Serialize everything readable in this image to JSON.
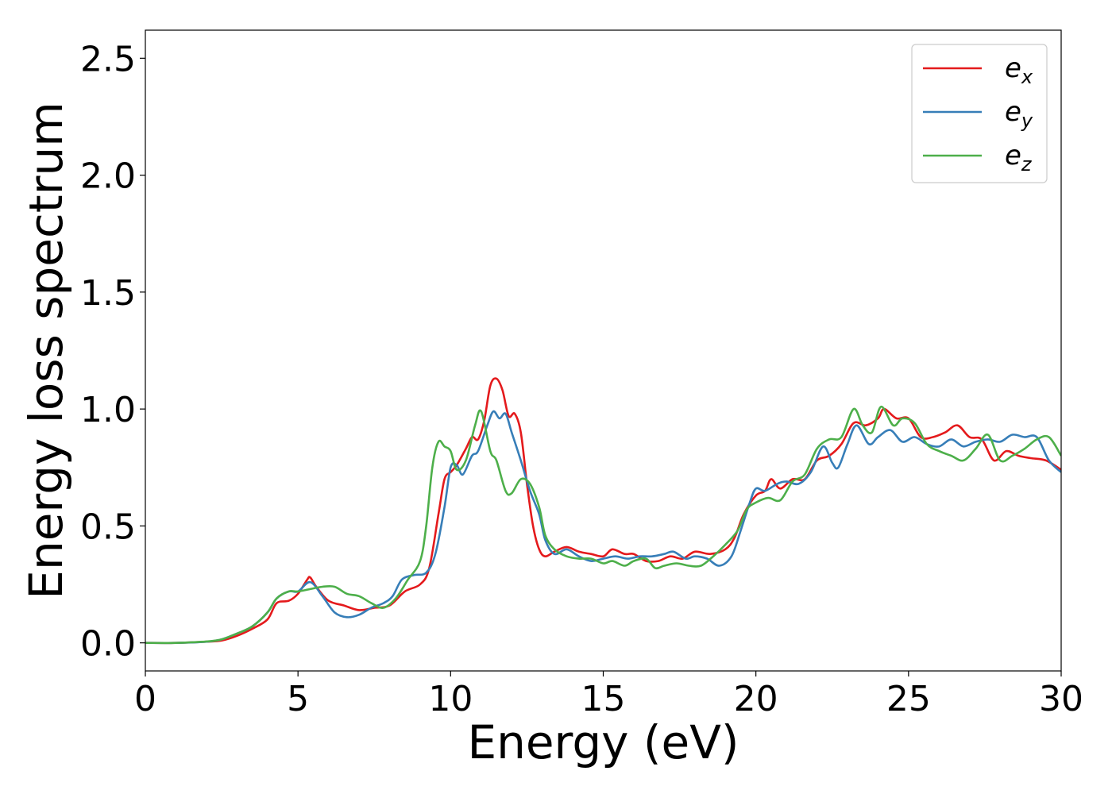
{
  "chart_data": {
    "type": "line",
    "xlabel": "Energy (eV)",
    "ylabel": "Energy loss spectrum",
    "xlim": [
      0,
      30
    ],
    "ylim": [
      -0.12,
      2.62
    ],
    "x_ticks": [
      "0",
      "5",
      "10",
      "15",
      "20",
      "25",
      "30"
    ],
    "y_ticks": [
      "0.0",
      "0.5",
      "1.0",
      "1.5",
      "2.0",
      "2.5"
    ],
    "grid": false,
    "legend_position": "top-right",
    "series": [
      {
        "name": "e_x",
        "label_base": "e",
        "label_sub": "x",
        "color": "#e41a1c",
        "points": [
          [
            0,
            0.0
          ],
          [
            1,
            0.0
          ],
          [
            2,
            0.005
          ],
          [
            2.5,
            0.01
          ],
          [
            3,
            0.03
          ],
          [
            3.5,
            0.06
          ],
          [
            4,
            0.1
          ],
          [
            4.3,
            0.17
          ],
          [
            4.7,
            0.18
          ],
          [
            5.0,
            0.21
          ],
          [
            5.3,
            0.27
          ],
          [
            5.4,
            0.28
          ],
          [
            5.6,
            0.24
          ],
          [
            6.0,
            0.18
          ],
          [
            6.5,
            0.16
          ],
          [
            7.0,
            0.14
          ],
          [
            7.5,
            0.15
          ],
          [
            8.0,
            0.16
          ],
          [
            8.5,
            0.22
          ],
          [
            9.0,
            0.25
          ],
          [
            9.3,
            0.32
          ],
          [
            9.6,
            0.55
          ],
          [
            9.8,
            0.7
          ],
          [
            10.0,
            0.73
          ],
          [
            10.2,
            0.76
          ],
          [
            10.5,
            0.83
          ],
          [
            10.7,
            0.88
          ],
          [
            10.9,
            0.87
          ],
          [
            11.1,
            0.95
          ],
          [
            11.3,
            1.1
          ],
          [
            11.5,
            1.13
          ],
          [
            11.7,
            1.08
          ],
          [
            11.9,
            0.97
          ],
          [
            12.1,
            0.98
          ],
          [
            12.3,
            0.9
          ],
          [
            12.5,
            0.68
          ],
          [
            12.7,
            0.5
          ],
          [
            12.9,
            0.4
          ],
          [
            13.1,
            0.37
          ],
          [
            13.4,
            0.39
          ],
          [
            13.8,
            0.41
          ],
          [
            14.2,
            0.39
          ],
          [
            14.6,
            0.38
          ],
          [
            15.0,
            0.37
          ],
          [
            15.3,
            0.4
          ],
          [
            15.7,
            0.38
          ],
          [
            16.0,
            0.38
          ],
          [
            16.4,
            0.35
          ],
          [
            16.8,
            0.35
          ],
          [
            17.2,
            0.37
          ],
          [
            17.6,
            0.36
          ],
          [
            18.0,
            0.39
          ],
          [
            18.5,
            0.38
          ],
          [
            19.0,
            0.4
          ],
          [
            19.3,
            0.45
          ],
          [
            19.6,
            0.55
          ],
          [
            20.0,
            0.63
          ],
          [
            20.3,
            0.65
          ],
          [
            20.5,
            0.7
          ],
          [
            20.8,
            0.66
          ],
          [
            21.2,
            0.7
          ],
          [
            21.6,
            0.7
          ],
          [
            22.0,
            0.78
          ],
          [
            22.4,
            0.8
          ],
          [
            22.8,
            0.85
          ],
          [
            23.2,
            0.94
          ],
          [
            23.6,
            0.93
          ],
          [
            24.0,
            0.96
          ],
          [
            24.2,
            1.0
          ],
          [
            24.6,
            0.96
          ],
          [
            25.0,
            0.96
          ],
          [
            25.4,
            0.88
          ],
          [
            25.8,
            0.88
          ],
          [
            26.2,
            0.9
          ],
          [
            26.6,
            0.93
          ],
          [
            27.0,
            0.88
          ],
          [
            27.4,
            0.87
          ],
          [
            27.8,
            0.78
          ],
          [
            28.2,
            0.82
          ],
          [
            28.6,
            0.8
          ],
          [
            29.0,
            0.79
          ],
          [
            29.5,
            0.78
          ],
          [
            30.0,
            0.74
          ]
        ]
      },
      {
        "name": "e_y",
        "label_base": "e",
        "label_sub": "y",
        "color": "#377eb8",
        "points": [
          [
            0,
            0.0
          ],
          [
            1,
            0.0
          ],
          [
            2,
            0.005
          ],
          [
            2.5,
            0.015
          ],
          [
            3,
            0.04
          ],
          [
            3.5,
            0.07
          ],
          [
            4,
            0.13
          ],
          [
            4.3,
            0.19
          ],
          [
            4.7,
            0.22
          ],
          [
            5.0,
            0.22
          ],
          [
            5.4,
            0.26
          ],
          [
            5.8,
            0.2
          ],
          [
            6.2,
            0.13
          ],
          [
            6.6,
            0.11
          ],
          [
            7.0,
            0.12
          ],
          [
            7.4,
            0.15
          ],
          [
            7.8,
            0.17
          ],
          [
            8.1,
            0.2
          ],
          [
            8.4,
            0.27
          ],
          [
            8.8,
            0.29
          ],
          [
            9.2,
            0.3
          ],
          [
            9.5,
            0.38
          ],
          [
            9.8,
            0.58
          ],
          [
            10.0,
            0.75
          ],
          [
            10.2,
            0.76
          ],
          [
            10.4,
            0.72
          ],
          [
            10.7,
            0.8
          ],
          [
            10.9,
            0.82
          ],
          [
            11.2,
            0.93
          ],
          [
            11.4,
            0.99
          ],
          [
            11.6,
            0.96
          ],
          [
            11.8,
            0.98
          ],
          [
            12.0,
            0.9
          ],
          [
            12.3,
            0.78
          ],
          [
            12.6,
            0.65
          ],
          [
            12.9,
            0.55
          ],
          [
            13.1,
            0.44
          ],
          [
            13.4,
            0.38
          ],
          [
            13.8,
            0.4
          ],
          [
            14.2,
            0.37
          ],
          [
            14.6,
            0.35
          ],
          [
            15.0,
            0.36
          ],
          [
            15.4,
            0.37
          ],
          [
            15.8,
            0.36
          ],
          [
            16.2,
            0.37
          ],
          [
            16.6,
            0.37
          ],
          [
            17.0,
            0.38
          ],
          [
            17.3,
            0.39
          ],
          [
            17.7,
            0.36
          ],
          [
            18.0,
            0.37
          ],
          [
            18.4,
            0.36
          ],
          [
            18.8,
            0.33
          ],
          [
            19.2,
            0.37
          ],
          [
            19.5,
            0.48
          ],
          [
            19.8,
            0.6
          ],
          [
            20.0,
            0.66
          ],
          [
            20.3,
            0.65
          ],
          [
            20.7,
            0.68
          ],
          [
            21.0,
            0.69
          ],
          [
            21.4,
            0.68
          ],
          [
            21.8,
            0.73
          ],
          [
            22.2,
            0.84
          ],
          [
            22.5,
            0.77
          ],
          [
            22.7,
            0.75
          ],
          [
            23.0,
            0.85
          ],
          [
            23.3,
            0.93
          ],
          [
            23.7,
            0.85
          ],
          [
            24.0,
            0.88
          ],
          [
            24.4,
            0.91
          ],
          [
            24.8,
            0.86
          ],
          [
            25.2,
            0.88
          ],
          [
            25.6,
            0.85
          ],
          [
            26.0,
            0.84
          ],
          [
            26.4,
            0.87
          ],
          [
            26.8,
            0.84
          ],
          [
            27.2,
            0.86
          ],
          [
            27.6,
            0.87
          ],
          [
            28.0,
            0.86
          ],
          [
            28.4,
            0.89
          ],
          [
            28.8,
            0.88
          ],
          [
            29.2,
            0.88
          ],
          [
            29.6,
            0.78
          ],
          [
            30.0,
            0.73
          ]
        ]
      },
      {
        "name": "e_z",
        "label_base": "e",
        "label_sub": "z",
        "color": "#4daf4a",
        "points": [
          [
            0,
            0.0
          ],
          [
            1,
            0.0
          ],
          [
            2,
            0.006
          ],
          [
            2.5,
            0.015
          ],
          [
            3,
            0.04
          ],
          [
            3.5,
            0.07
          ],
          [
            4,
            0.13
          ],
          [
            4.3,
            0.19
          ],
          [
            4.7,
            0.22
          ],
          [
            5.0,
            0.22
          ],
          [
            5.4,
            0.23
          ],
          [
            5.8,
            0.24
          ],
          [
            6.2,
            0.24
          ],
          [
            6.6,
            0.21
          ],
          [
            7.0,
            0.2
          ],
          [
            7.4,
            0.17
          ],
          [
            7.8,
            0.15
          ],
          [
            8.2,
            0.19
          ],
          [
            8.6,
            0.27
          ],
          [
            9.0,
            0.35
          ],
          [
            9.2,
            0.5
          ],
          [
            9.4,
            0.75
          ],
          [
            9.6,
            0.86
          ],
          [
            9.8,
            0.84
          ],
          [
            10.0,
            0.82
          ],
          [
            10.2,
            0.74
          ],
          [
            10.5,
            0.78
          ],
          [
            10.8,
            0.93
          ],
          [
            11.0,
            0.99
          ],
          [
            11.3,
            0.82
          ],
          [
            11.5,
            0.78
          ],
          [
            11.8,
            0.65
          ],
          [
            12.0,
            0.64
          ],
          [
            12.3,
            0.7
          ],
          [
            12.6,
            0.68
          ],
          [
            12.9,
            0.58
          ],
          [
            13.1,
            0.46
          ],
          [
            13.4,
            0.4
          ],
          [
            13.8,
            0.37
          ],
          [
            14.2,
            0.36
          ],
          [
            14.6,
            0.36
          ],
          [
            15.0,
            0.34
          ],
          [
            15.3,
            0.35
          ],
          [
            15.7,
            0.33
          ],
          [
            16.0,
            0.35
          ],
          [
            16.4,
            0.36
          ],
          [
            16.7,
            0.32
          ],
          [
            17.0,
            0.33
          ],
          [
            17.4,
            0.34
          ],
          [
            17.8,
            0.33
          ],
          [
            18.2,
            0.33
          ],
          [
            18.6,
            0.37
          ],
          [
            19.0,
            0.42
          ],
          [
            19.4,
            0.48
          ],
          [
            19.7,
            0.57
          ],
          [
            20.0,
            0.6
          ],
          [
            20.4,
            0.62
          ],
          [
            20.8,
            0.61
          ],
          [
            21.2,
            0.69
          ],
          [
            21.6,
            0.72
          ],
          [
            22.0,
            0.83
          ],
          [
            22.4,
            0.87
          ],
          [
            22.8,
            0.88
          ],
          [
            23.2,
            1.0
          ],
          [
            23.5,
            0.93
          ],
          [
            23.8,
            0.9
          ],
          [
            24.1,
            1.01
          ],
          [
            24.5,
            0.93
          ],
          [
            24.8,
            0.96
          ],
          [
            25.2,
            0.94
          ],
          [
            25.6,
            0.85
          ],
          [
            26.0,
            0.82
          ],
          [
            26.4,
            0.8
          ],
          [
            26.8,
            0.78
          ],
          [
            27.2,
            0.83
          ],
          [
            27.6,
            0.89
          ],
          [
            28.0,
            0.78
          ],
          [
            28.4,
            0.8
          ],
          [
            28.8,
            0.83
          ],
          [
            29.2,
            0.87
          ],
          [
            29.6,
            0.88
          ],
          [
            30.0,
            0.8
          ]
        ]
      }
    ]
  }
}
